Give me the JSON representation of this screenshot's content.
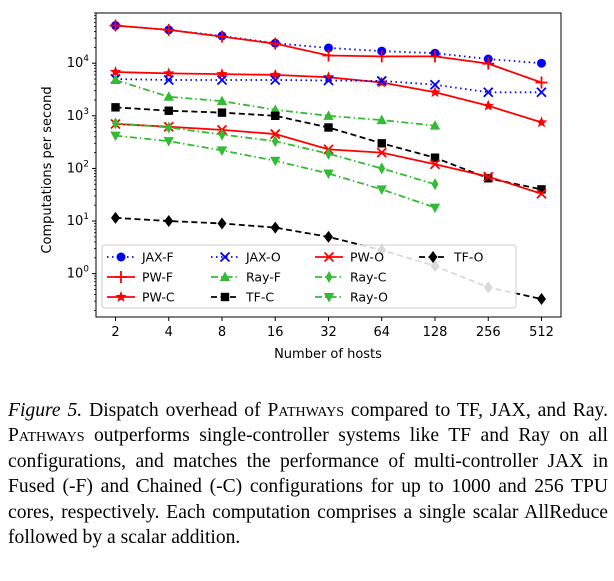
{
  "chart_data": {
    "type": "line",
    "yscale": "log",
    "xlabel": "Number of hosts",
    "ylabel": "Computations per second",
    "categories": [
      "2",
      "4",
      "8",
      "16",
      "32",
      "64",
      "128",
      "256",
      "512"
    ],
    "ylim": [
      0.15,
      90000
    ],
    "yticks": [
      {
        "value": 1,
        "base": "10",
        "exp": "0"
      },
      {
        "value": 10,
        "base": "10",
        "exp": "1"
      },
      {
        "value": 100,
        "base": "10",
        "exp": "2"
      },
      {
        "value": 1000,
        "base": "10",
        "exp": "3"
      },
      {
        "value": 10000,
        "base": "10",
        "exp": "4"
      }
    ],
    "grid": false,
    "legend_position": "lower-left",
    "series": [
      {
        "name": "JAX-F",
        "color": "#0000ff",
        "dash": "dot",
        "marker": "circle",
        "x": [
          0,
          1,
          2,
          3,
          4,
          5,
          6,
          7,
          8
        ],
        "values": [
          52000,
          43000,
          33000,
          24000,
          19500,
          17000,
          15500,
          12000,
          10000
        ]
      },
      {
        "name": "PW-F",
        "color": "#ff0000",
        "dash": "solid",
        "marker": "plus",
        "x": [
          0,
          1,
          2,
          3,
          4,
          5,
          6,
          7,
          8
        ],
        "values": [
          52000,
          43000,
          32000,
          23500,
          14000,
          13500,
          13500,
          9800,
          4300
        ]
      },
      {
        "name": "PW-C",
        "color": "#ff0000",
        "dash": "solid",
        "marker": "star",
        "x": [
          0,
          1,
          2,
          3,
          4,
          5,
          6,
          7,
          8
        ],
        "values": [
          6800,
          6400,
          6200,
          6000,
          5400,
          4300,
          2800,
          1550,
          750
        ]
      },
      {
        "name": "JAX-O",
        "color": "#0000ff",
        "dash": "dot",
        "marker": "x",
        "x": [
          0,
          1,
          2,
          3,
          4,
          5,
          6,
          7,
          8
        ],
        "values": [
          5000,
          4800,
          4800,
          4800,
          4700,
          4600,
          3900,
          2800,
          2800
        ]
      },
      {
        "name": "Ray-F",
        "color": "#33bb33",
        "dash": "dashdot",
        "marker": "triangle-up",
        "x": [
          0,
          1,
          2,
          3,
          4,
          5,
          6
        ],
        "values": [
          4800,
          2300,
          1900,
          1300,
          1000,
          830,
          650
        ]
      },
      {
        "name": "TF-C",
        "color": "#000000",
        "dash": "dash",
        "marker": "square",
        "x": [
          0,
          1,
          2,
          3,
          4,
          5,
          6,
          7,
          8
        ],
        "values": [
          1450,
          1250,
          1150,
          1000,
          600,
          300,
          160,
          65,
          40
        ]
      },
      {
        "name": "PW-O",
        "color": "#ff0000",
        "dash": "solid",
        "marker": "x",
        "x": [
          0,
          1,
          2,
          3,
          4,
          5,
          6,
          7,
          8
        ],
        "values": [
          700,
          620,
          540,
          450,
          230,
          200,
          120,
          70,
          33
        ]
      },
      {
        "name": "Ray-C",
        "color": "#33bb33",
        "dash": "dashdot",
        "marker": "diamond-thin",
        "x": [
          0,
          1,
          2,
          3,
          4,
          5,
          6
        ],
        "values": [
          720,
          600,
          440,
          330,
          190,
          100,
          50
        ]
      },
      {
        "name": "Ray-O",
        "color": "#33bb33",
        "dash": "dashdot",
        "marker": "triangle-down",
        "x": [
          0,
          1,
          2,
          3,
          4,
          5,
          6
        ],
        "values": [
          420,
          330,
          220,
          140,
          80,
          40,
          18
        ]
      },
      {
        "name": "TF-O",
        "color": "#000000",
        "dash": "dash",
        "marker": "diamond",
        "x": [
          0,
          1,
          2,
          3,
          4,
          5,
          6,
          7,
          8
        ],
        "values": [
          11.5,
          10,
          9,
          7.5,
          5,
          2.8,
          1.4,
          0.55,
          0.33
        ]
      }
    ],
    "legend_order": [
      "JAX-F",
      "PW-F",
      "PW-C",
      "JAX-O",
      "Ray-F",
      "TF-C",
      "PW-O",
      "Ray-C",
      "Ray-O",
      "TF-O"
    ]
  },
  "caption": {
    "figure_label": "Figure 5.",
    "seg1": " Dispatch overhead of ",
    "pathways1": "Pathways",
    "seg2": " compared to TF, JAX, and Ray. ",
    "pathways2": "Pathways",
    "seg3": " outperforms single-controller systems like TF and Ray on all configurations, and matches the performance of multi-controller JAX in Fused (-F) and Chained (-C) configurations for up to 1000 and 256 TPU cores, respectively. Each computation comprises a single scalar AllReduce followed by a scalar addition."
  }
}
